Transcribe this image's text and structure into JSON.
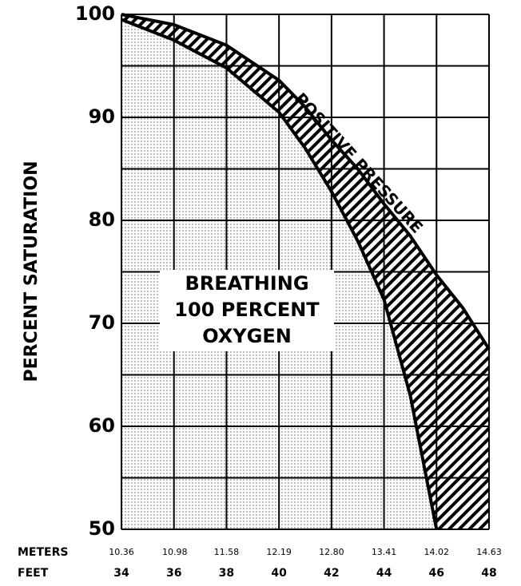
{
  "chart_data": {
    "type": "area",
    "y_label": "PERCENT SATURATION",
    "x_label": "FEET",
    "x2_label": "METERS",
    "annotations": [
      "BREATHING",
      "100 PERCENT",
      "OXYGEN",
      "POSITIVE PRESSURE"
    ],
    "x": [
      34,
      36,
      38,
      40,
      41,
      42,
      43,
      44,
      45,
      46,
      47,
      48
    ],
    "series": [
      {
        "color": "#000000",
        "values": [
          99.5,
          97.5,
          94.8,
          90.5,
          87,
          82.8,
          78,
          72.3,
          63,
          50,
          null,
          null
        ]
      },
      {
        "color": "#000000",
        "values": [
          100,
          99,
          97,
          93.6,
          91,
          87.8,
          85,
          81.6,
          78.5,
          74.7,
          71.5,
          67.5
        ]
      }
    ],
    "xlim": [
      34,
      48
    ],
    "xticks": [
      34,
      36,
      38,
      40,
      42,
      44,
      46,
      48
    ],
    "x2lim": [
      10.36,
      14.63
    ],
    "x2ticks": [
      {
        "value": 10.36,
        "label": "10.36"
      },
      {
        "value": 10.98,
        "label": "10.98"
      },
      {
        "value": 11.58,
        "label": "11.58"
      },
      {
        "value": 12.19,
        "label": "12.19"
      },
      {
        "value": 12.8,
        "label": "12.80"
      },
      {
        "value": 13.41,
        "label": "13.41"
      },
      {
        "value": 14.02,
        "label": "14.02"
      },
      {
        "value": 14.63,
        "label": "14.63"
      }
    ],
    "ylim": [
      50,
      100
    ],
    "yticks": [
      50,
      60,
      70,
      80,
      90,
      100
    ],
    "grid_step": 5,
    "grid": true
  }
}
